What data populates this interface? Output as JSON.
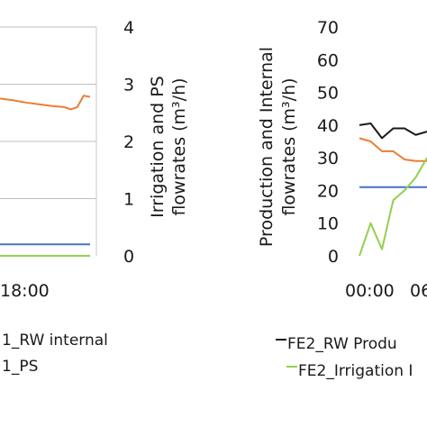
{
  "chart_data": [
    {
      "type": "line",
      "title": "",
      "panel": "left",
      "x_tick_labels": [
        "18:00"
      ],
      "y2_label_lines": [
        "Irrigation and PS",
        "flowrates (m³/h)"
      ],
      "y2_ticks": [
        "0",
        "1",
        "2",
        "3",
        "4"
      ],
      "ylim": [
        0,
        4
      ],
      "grid": true,
      "series": [
        {
          "name": "1_RW internal",
          "color": "#4472c4",
          "x": [
            0,
            0.7
          ],
          "values": [
            0.2,
            0.2
          ]
        },
        {
          "name": "1_PS",
          "color": "#ed7d31",
          "x": [
            0,
            0.1,
            0.2,
            0.3,
            0.4,
            0.5,
            0.55,
            0.6,
            0.65,
            0.7
          ],
          "values": [
            2.75,
            2.72,
            2.68,
            2.65,
            2.62,
            2.6,
            2.56,
            2.6,
            2.8,
            2.78
          ]
        },
        {
          "name": "",
          "color": "#92d050",
          "x": [
            0,
            0.7
          ],
          "values": [
            0.0,
            0.0
          ]
        }
      ],
      "legend": [
        "1_RW internal",
        "1_PS"
      ]
    },
    {
      "type": "line",
      "title": "",
      "panel": "right",
      "x_tick_labels": [
        "00:00",
        "06"
      ],
      "y_label_lines": [
        "Production and Internal",
        "flowrates (m³/h)"
      ],
      "y_ticks": [
        "0",
        "10",
        "20",
        "30",
        "40",
        "50",
        "60",
        "70"
      ],
      "ylim": [
        0,
        70
      ],
      "grid": false,
      "series": [
        {
          "name": "FE2_RW Produ",
          "color": "#1a1a1a",
          "x": [
            0,
            1,
            2,
            3,
            4,
            5,
            6
          ],
          "values": [
            40,
            40.5,
            36,
            39,
            39,
            37,
            38
          ]
        },
        {
          "name": "",
          "color": "#ed7d31",
          "x": [
            0,
            1,
            2,
            3,
            4,
            5,
            6
          ],
          "values": [
            36,
            35,
            32,
            32,
            29.5,
            29,
            29
          ]
        },
        {
          "name": "",
          "color": "#4472c4",
          "x": [
            0,
            6
          ],
          "values": [
            21,
            21
          ]
        },
        {
          "name": "FE2_Irrigation I",
          "color": "#92d050",
          "x": [
            0,
            1,
            2,
            3,
            4,
            5,
            6
          ],
          "values": [
            0,
            10,
            2,
            17,
            20,
            24,
            30
          ]
        }
      ],
      "legend": [
        "FE2_RW Produ",
        "FE2_Irrigation I"
      ]
    }
  ]
}
